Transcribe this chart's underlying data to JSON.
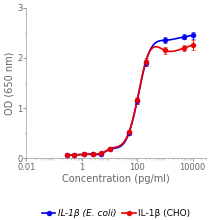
{
  "title": "",
  "xlabel": "Concentration (pg/ml)",
  "ylabel": "OD (650 nm)",
  "xlim": [
    0.01,
    30000
  ],
  "ylim": [
    0,
    3
  ],
  "yticks": [
    0,
    1,
    2,
    3
  ],
  "xticks_major": [
    0.01,
    1,
    100,
    10000
  ],
  "xtick_labels": [
    "0.01",
    "1",
    "100",
    "10000"
  ],
  "series": [
    {
      "label": "IL-1β (E. coli)",
      "color": "#0000ee",
      "x": [
        0.3,
        0.5,
        1.2,
        2.5,
        5,
        10,
        50,
        100,
        200,
        1000,
        5000,
        10000
      ],
      "y": [
        0.07,
        0.07,
        0.08,
        0.08,
        0.09,
        0.18,
        0.5,
        1.15,
        1.9,
        2.35,
        2.42,
        2.45
      ],
      "yerr": [
        0.01,
        0.01,
        0.01,
        0.01,
        0.01,
        0.02,
        0.04,
        0.06,
        0.06,
        0.06,
        0.05,
        0.07
      ]
    },
    {
      "label": "IL-1β (CHO)",
      "color": "#ee0000",
      "x": [
        0.3,
        0.5,
        1.2,
        2.5,
        5,
        10,
        50,
        100,
        200,
        1000,
        5000,
        10000
      ],
      "y": [
        0.07,
        0.07,
        0.08,
        0.09,
        0.1,
        0.19,
        0.52,
        1.16,
        1.92,
        2.15,
        2.2,
        2.25
      ],
      "yerr": [
        0.01,
        0.01,
        0.01,
        0.01,
        0.02,
        0.03,
        0.04,
        0.07,
        0.08,
        0.07,
        0.06,
        0.1
      ]
    }
  ],
  "marker_size": 3.5,
  "line_width": 1.2,
  "capsize": 1.5,
  "elinewidth": 0.7,
  "background_color": "#ffffff",
  "axis_color": "#aaaaaa",
  "tick_color": "#666666",
  "tick_label_size": 6,
  "axis_label_size": 7,
  "legend_size": 6.5
}
